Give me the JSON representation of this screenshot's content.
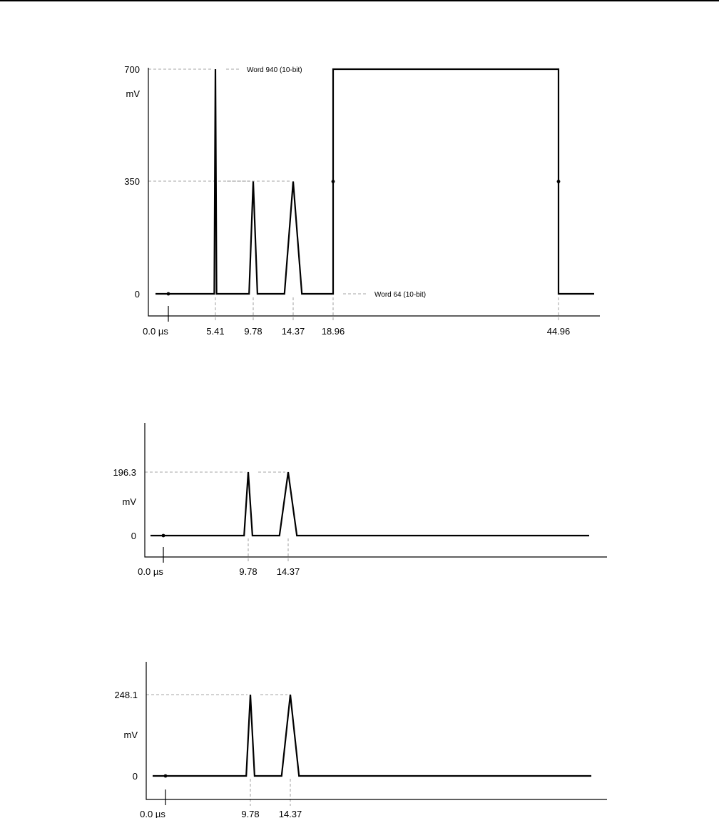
{
  "chart_data": [
    {
      "type": "line",
      "ylabel": "mV",
      "x_tick_labels": [
        "0.0 µs",
        "5.41",
        "9.78",
        "14.37",
        "18.96",
        "44.96"
      ],
      "y_tick_labels": [
        "700",
        "350",
        "0"
      ],
      "ylim": [
        0,
        700
      ],
      "annotations": [
        "Word 940 (10-bit)",
        "Word 64 (10-bit)"
      ],
      "series": [
        {
          "x": [
            -1.5,
            5.0,
            5.28,
            5.41,
            5.54,
            5.82,
            9.3,
            9.78,
            10.26,
            13.37,
            14.37,
            15.37,
            18.96,
            18.96,
            44.96,
            44.96,
            49.0
          ],
          "y": [
            0,
            0,
            0,
            700,
            0,
            0,
            0,
            350,
            0,
            0,
            350,
            0,
            0,
            700,
            700,
            0,
            0
          ]
        }
      ],
      "markers": [
        {
          "x": 0.0,
          "y": 0
        },
        {
          "x": 18.96,
          "y": 350
        },
        {
          "x": 44.96,
          "y": 350
        }
      ]
    },
    {
      "type": "line",
      "ylabel": "mV",
      "x_tick_labels": [
        "0.0 µs",
        "9.78",
        "14.37"
      ],
      "y_tick_labels": [
        "196.3",
        "0"
      ],
      "ylim": [
        0,
        196.3
      ],
      "series": [
        {
          "x": [
            -1.5,
            9.3,
            9.78,
            10.26,
            13.37,
            14.37,
            15.37,
            49.0
          ],
          "y": [
            0,
            0,
            196.3,
            0,
            0,
            196.3,
            0,
            0
          ]
        }
      ],
      "markers": [
        {
          "x": 0.0,
          "y": 0
        }
      ]
    },
    {
      "type": "line",
      "ylabel": "mV",
      "x_tick_labels": [
        "0.0 µs",
        "9.78",
        "14.37"
      ],
      "y_tick_labels": [
        "248.1",
        "0"
      ],
      "ylim": [
        0,
        248.1
      ],
      "series": [
        {
          "x": [
            -1.5,
            9.3,
            9.78,
            10.26,
            13.37,
            14.37,
            15.37,
            49.0
          ],
          "y": [
            0,
            0,
            248.1,
            0,
            0,
            248.1,
            0,
            0
          ]
        }
      ],
      "markers": [
        {
          "x": 0.0,
          "y": 0
        }
      ]
    }
  ]
}
